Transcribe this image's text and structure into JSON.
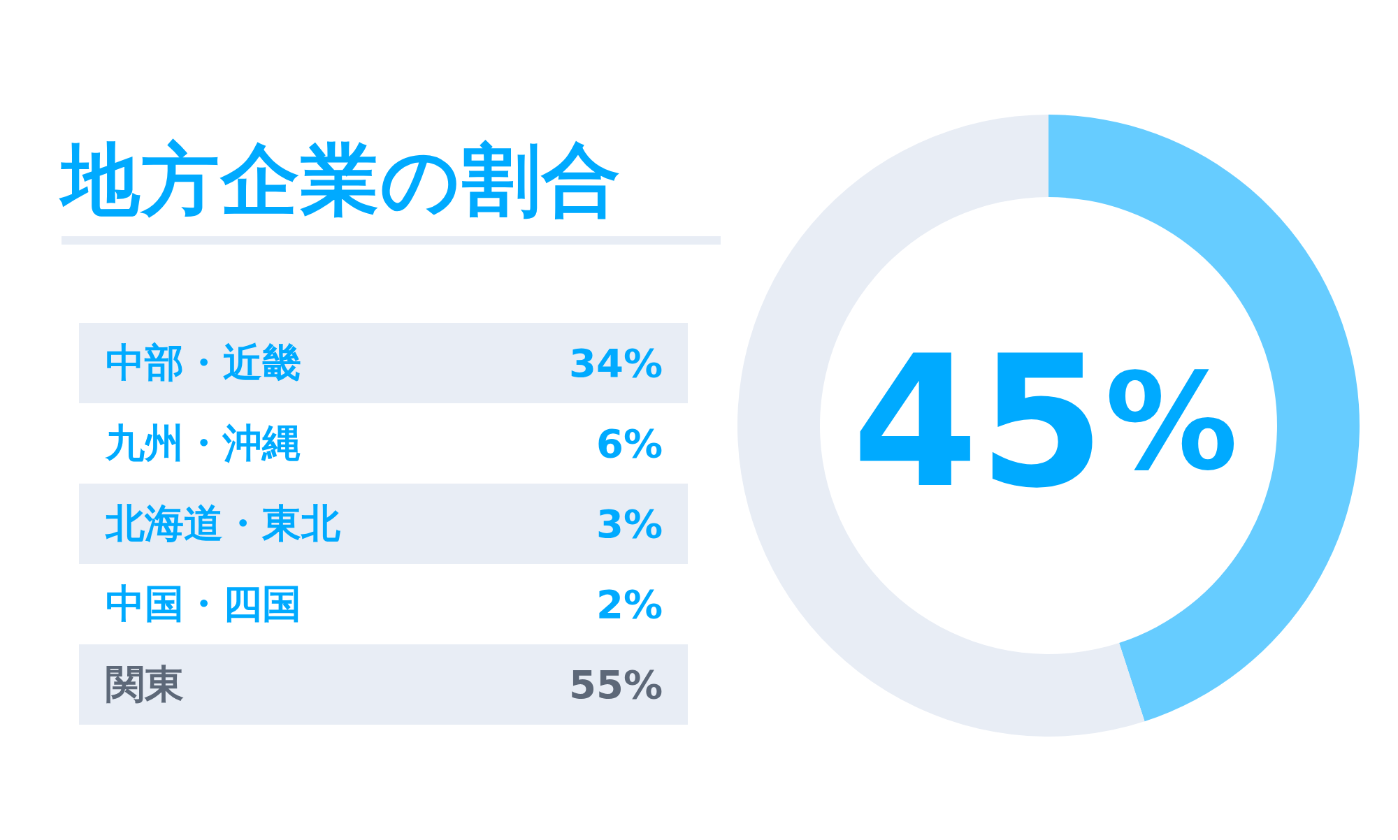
{
  "chart_data": [
    {
      "type": "other",
      "title": "地方企業の割合",
      "categories": [
        "中部・近畿",
        "九州・沖縄",
        "北海道・東北",
        "中国・四国",
        "関東"
      ],
      "values": [
        34,
        6,
        3,
        2,
        55
      ],
      "value_labels": [
        "34%",
        "6%",
        "3%",
        "2%",
        "55%"
      ]
    },
    {
      "type": "donut",
      "categories": [
        null,
        null
      ],
      "values": [
        45,
        55
      ],
      "colors": [
        "#66ccff",
        "#e8edf5"
      ],
      "annotations": [
        "45%"
      ]
    }
  ]
}
